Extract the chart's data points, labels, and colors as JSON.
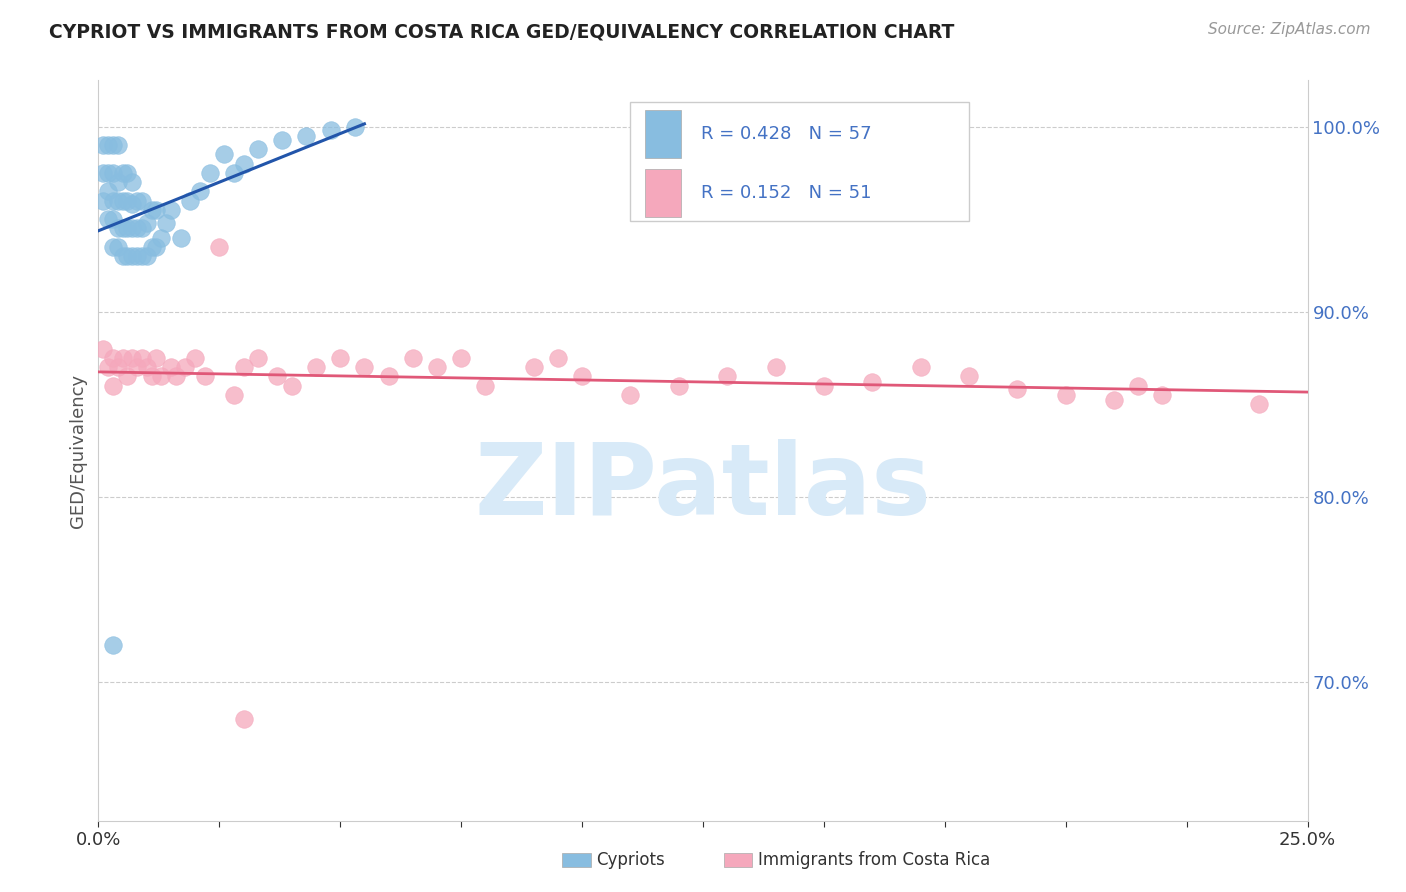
{
  "title": "CYPRIOT VS IMMIGRANTS FROM COSTA RICA GED/EQUIVALENCY CORRELATION CHART",
  "source": "Source: ZipAtlas.com",
  "ylabel": "GED/Equivalency",
  "ytick_labels": [
    "100.0%",
    "90.0%",
    "80.0%",
    "70.0%"
  ],
  "ytick_vals": [
    1.0,
    0.9,
    0.8,
    0.7
  ],
  "xmin": 0.0,
  "xmax": 0.25,
  "ymin": 0.625,
  "ymax": 1.025,
  "legend_r1": "R = 0.428",
  "legend_n1": "N = 57",
  "legend_r2": "R = 0.152",
  "legend_n2": "N = 51",
  "color_blue": "#88bde0",
  "color_pink": "#f5a8bc",
  "color_blue_line": "#2255aa",
  "color_pink_line": "#e05878",
  "watermark_color": "#d8eaf8",
  "grid_color": "#cccccc",
  "title_color": "#222222",
  "tick_color": "#4472c4",
  "label_color": "#555555"
}
